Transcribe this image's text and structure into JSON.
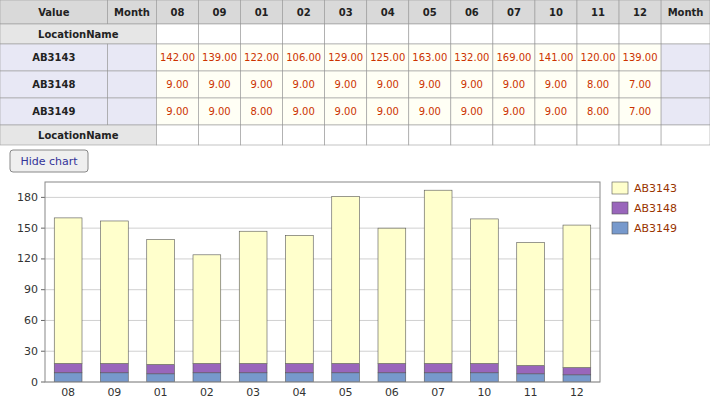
{
  "chart_data": [
    {
      "type": "table",
      "columns": [
        "Value",
        "Month",
        "08",
        "09",
        "01",
        "02",
        "03",
        "04",
        "05",
        "06",
        "07",
        "10",
        "11",
        "12",
        "Month"
      ],
      "annotations": [
        "LocationName",
        "LocationName"
      ],
      "series": [
        {
          "name": "AB3143",
          "values": [
            142,
            139,
            122,
            106,
            129,
            125,
            163,
            132,
            169,
            141,
            120,
            139
          ],
          "value_labels": [
            "142.00",
            "139.00",
            "122.00",
            "106.00",
            "129.00",
            "125.00",
            "163.00",
            "132.00",
            "169.00",
            "141.00",
            "120.00",
            "139.00"
          ]
        },
        {
          "name": "AB3148",
          "values": [
            9,
            9,
            9,
            9,
            9,
            9,
            9,
            9,
            9,
            9,
            8,
            7
          ],
          "value_labels": [
            "9.00",
            "9.00",
            "9.00",
            "9.00",
            "9.00",
            "9.00",
            "9.00",
            "9.00",
            "9.00",
            "9.00",
            "8.00",
            "7.00"
          ]
        },
        {
          "name": "AB3149",
          "values": [
            9,
            9,
            8,
            9,
            9,
            9,
            9,
            9,
            9,
            9,
            8,
            7
          ],
          "value_labels": [
            "9.00",
            "9.00",
            "8.00",
            "9.00",
            "9.00",
            "9.00",
            "9.00",
            "9.00",
            "9.00",
            "9.00",
            "8.00",
            "7.00"
          ]
        }
      ]
    },
    {
      "type": "bar",
      "stacked": true,
      "annotations": [
        "Hide chart"
      ],
      "categories": [
        "08",
        "09",
        "01",
        "02",
        "03",
        "04",
        "05",
        "06",
        "07",
        "10",
        "11",
        "12"
      ],
      "series": [
        {
          "name": "AB3143",
          "color": "#ffffcc",
          "values": [
            142,
            139,
            122,
            106,
            129,
            125,
            163,
            132,
            169,
            141,
            120,
            139
          ]
        },
        {
          "name": "AB3148",
          "color": "#9966bb",
          "values": [
            9,
            9,
            9,
            9,
            9,
            9,
            9,
            9,
            9,
            9,
            8,
            7
          ]
        },
        {
          "name": "AB3149",
          "color": "#7799cc",
          "values": [
            9,
            9,
            8,
            9,
            9,
            9,
            9,
            9,
            9,
            9,
            8,
            7
          ]
        }
      ],
      "ylim": [
        0,
        195
      ],
      "yticks": [
        0,
        30,
        60,
        90,
        120,
        150,
        180
      ],
      "grid": true,
      "legend": "right"
    }
  ]
}
